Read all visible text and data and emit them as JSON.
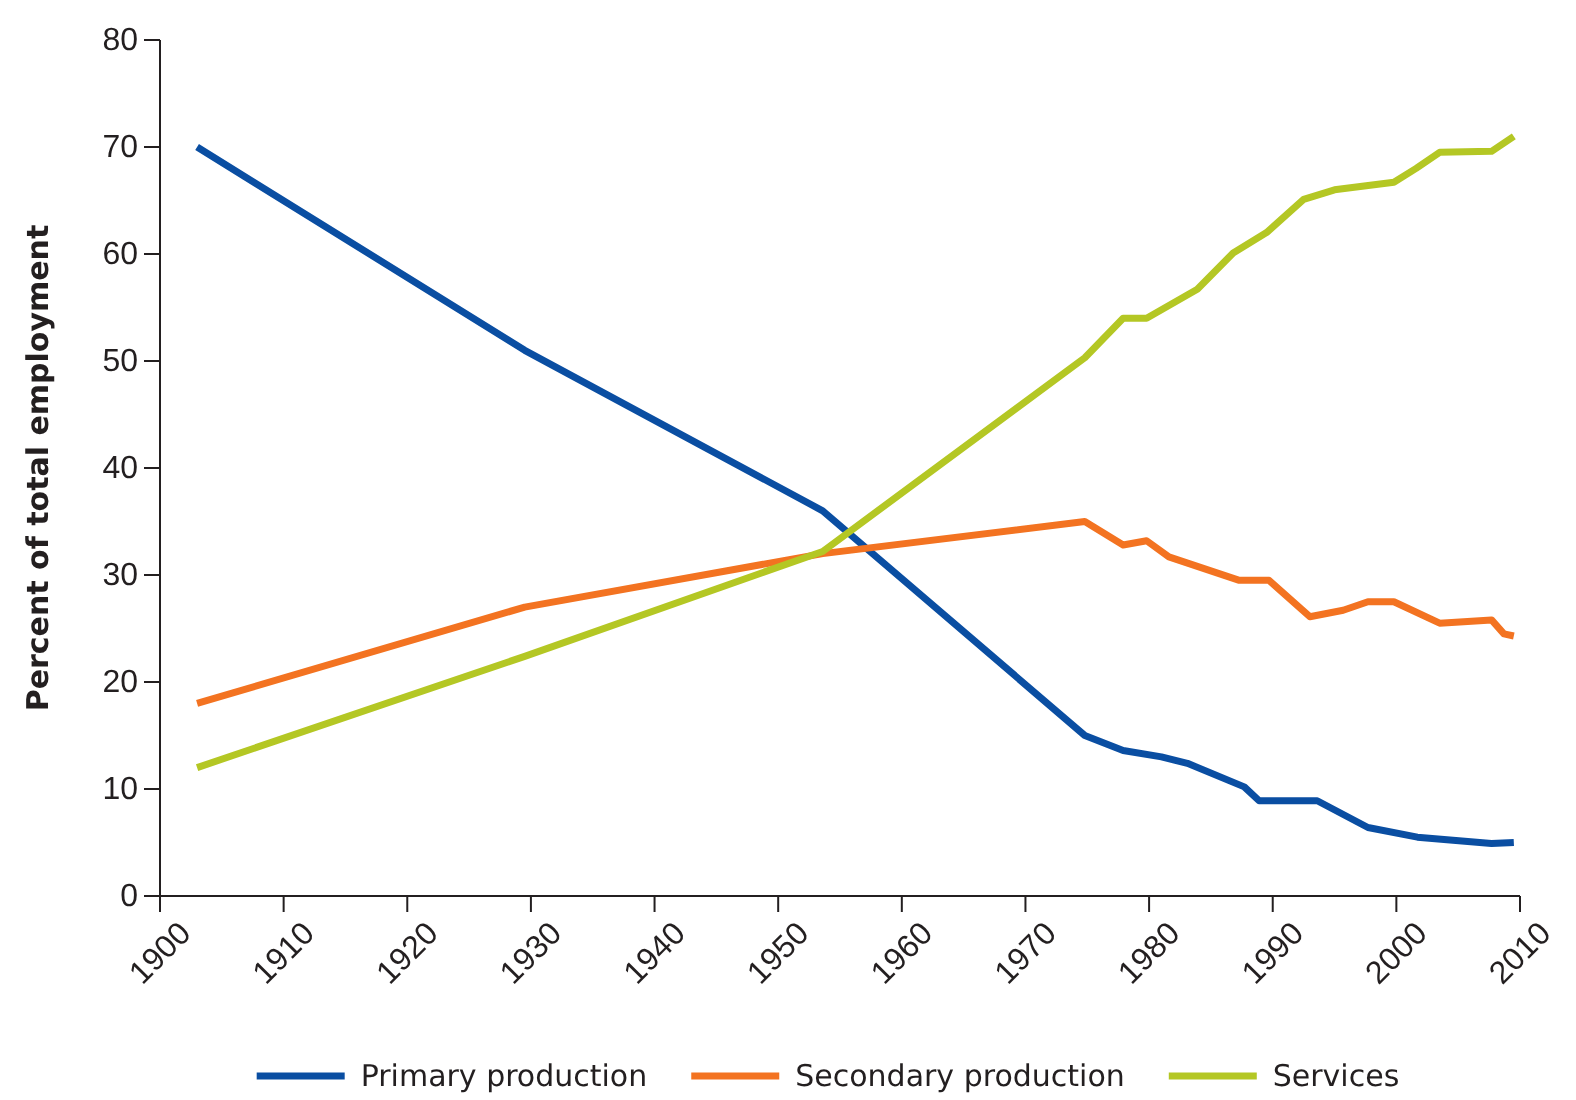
{
  "chart_data": {
    "type": "line",
    "ylabel": "Percent of total employment",
    "xlim": [
      1900,
      2010
    ],
    "xticks": [
      1900,
      1910,
      1920,
      1930,
      1940,
      1950,
      1960,
      1970,
      1980,
      1990,
      2000,
      2010
    ],
    "ylim": [
      0,
      80
    ],
    "yticks": [
      0,
      10,
      20,
      30,
      40,
      50,
      60,
      70,
      80
    ],
    "legend": "bottom",
    "grid": false,
    "line_style": "solid",
    "marker": "none",
    "series": [
      {
        "name": "Primary production",
        "color": "#0a4ea2",
        "x": [
          1903,
          1929.5,
          1953.6,
          1974.8,
          1977.9,
          1981,
          1983.1,
          1987.7,
          1988.9,
          1993.6,
          1997.7,
          2001.7,
          2007.7,
          2009.5
        ],
        "values": [
          70,
          51,
          36,
          15,
          13.6,
          13,
          12.4,
          10.2,
          8.9,
          8.9,
          6.4,
          5.5,
          4.9,
          5
        ]
      },
      {
        "name": "Secondary production",
        "color": "#f37321",
        "x": [
          1903,
          1929.5,
          1953.6,
          1974.8,
          1977.9,
          1979.8,
          1981.6,
          1987.3,
          1989.7,
          1993,
          1995.7,
          1997.7,
          1999.8,
          2003.5,
          2007.7,
          2008.7,
          2009.5
        ],
        "values": [
          18,
          27,
          32,
          35,
          32.8,
          33.2,
          31.7,
          29.5,
          29.5,
          26.1,
          26.7,
          27.5,
          27.5,
          25.5,
          25.8,
          24.5,
          24.3
        ]
      },
      {
        "name": "Services",
        "color": "#b4c724",
        "x": [
          1903,
          1929.5,
          1953.6,
          1974.8,
          1977.9,
          1979.8,
          1983.9,
          1986.8,
          1989.5,
          1992.5,
          1995,
          1999.8,
          2001.6,
          2003.5,
          2007.7,
          2009.5
        ],
        "values": [
          12,
          22.4,
          32.2,
          50.3,
          54,
          54,
          56.7,
          60.1,
          62,
          65.1,
          66,
          66.7,
          68,
          69.5,
          69.6,
          71
        ]
      }
    ]
  }
}
